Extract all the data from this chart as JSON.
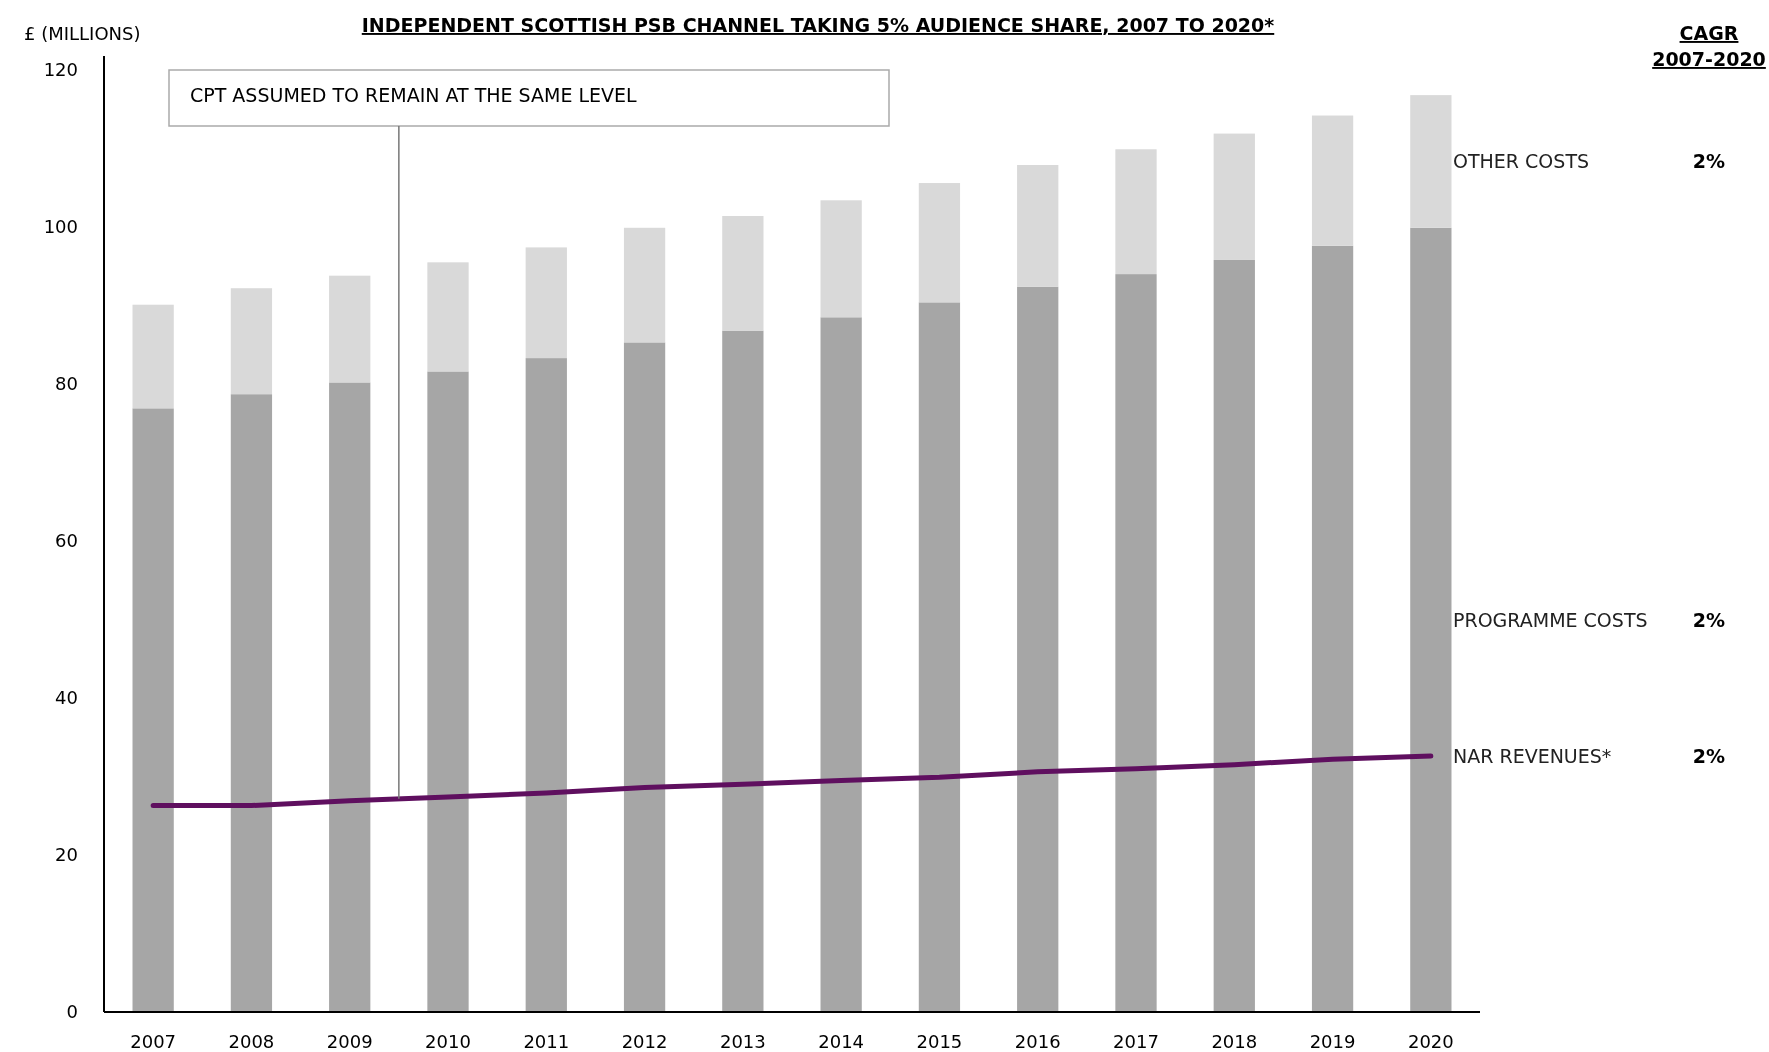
{
  "chart_data": {
    "type": "bar",
    "stacked": true,
    "title": "INDEPENDENT SCOTTISH PSB CHANNEL TAKING 5% AUDIENCE SHARE, 2007 TO 2020*",
    "ylabel": "£ (MILLIONS)",
    "categories": [
      "2007",
      "2008",
      "2009",
      "2010",
      "2011",
      "2012",
      "2013",
      "2014",
      "2015",
      "2016",
      "2017",
      "2018",
      "2019",
      "2020"
    ],
    "series": [
      {
        "name": "PROGRAMME COSTS",
        "color": "#a6a6a6",
        "values": [
          76.9,
          78.7,
          80.2,
          81.6,
          83.3,
          85.3,
          86.8,
          88.5,
          90.4,
          92.4,
          94.0,
          95.8,
          97.6,
          99.9
        ]
      },
      {
        "name": "OTHER COSTS",
        "color": "#d9d9d9",
        "values": [
          13.2,
          13.5,
          13.6,
          13.9,
          14.1,
          14.6,
          14.6,
          14.9,
          15.2,
          15.5,
          15.9,
          16.1,
          16.6,
          16.9
        ]
      },
      {
        "name": "NAR REVENUES*",
        "type": "line",
        "color": "#5f0f5f",
        "values": [
          26.3,
          26.3,
          26.9,
          27.4,
          27.9,
          28.6,
          29.0,
          29.5,
          29.9,
          30.6,
          31.0,
          31.5,
          32.2,
          32.6
        ]
      }
    ],
    "ylim": [
      0,
      120
    ],
    "yticks": [
      0,
      20,
      40,
      60,
      80,
      100,
      120
    ],
    "grid": false,
    "legend": "right",
    "annotations": [
      "CPT ASSUMED TO REMAIN AT THE SAME LEVEL",
      "CAGR\n2007-2020",
      "2%",
      "2%",
      "2%"
    ]
  }
}
